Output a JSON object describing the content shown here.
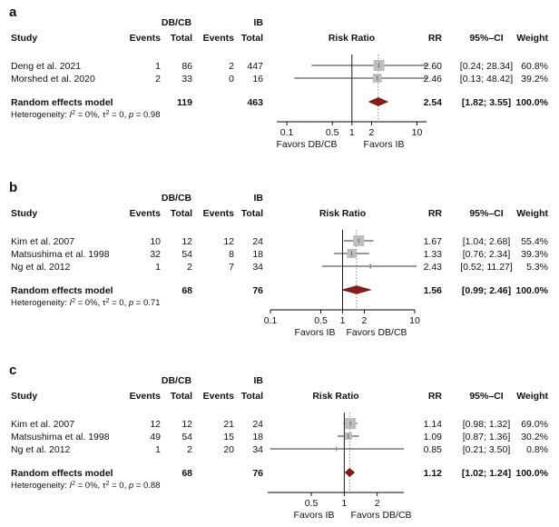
{
  "headers": {
    "study": "Study",
    "group1_top": "DB/CB",
    "group2_top": "IB",
    "events": "Events",
    "total": "Total",
    "risk_ratio": "Risk Ratio",
    "rr": "RR",
    "ci": "95%–CI",
    "weight": "Weight"
  },
  "chart_data": [
    {
      "type": "forest",
      "panel": "a",
      "axis": {
        "scale": "log",
        "ticks": [
          "0.1",
          "0.5",
          "1",
          "2",
          "10"
        ],
        "tick_values": [
          0.1,
          0.5,
          1,
          2,
          10
        ],
        "range": [
          0.07,
          14
        ]
      },
      "favors_left": "Favors DB/CB",
      "favors_right": "Favors IB",
      "studies": [
        {
          "study": "Deng et al. 2021",
          "e1": "1",
          "n1": "86",
          "e2": "2",
          "n2": "447",
          "rr": 2.6,
          "lo": 0.24,
          "hi": 28.34,
          "rr_text": "2.60",
          "ci_text": "[0.24; 28.34]",
          "weight_text": "60.8%",
          "weight": 60.8
        },
        {
          "study": "Morshed et al. 2020",
          "e1": "2",
          "n1": "33",
          "e2": "0",
          "n2": "16",
          "rr": 2.46,
          "lo": 0.13,
          "hi": 48.42,
          "rr_text": "2.46",
          "ci_text": "[0.13; 48.42]",
          "weight_text": "39.2%",
          "weight": 39.2
        }
      ],
      "pooled": {
        "label": "Random effects model",
        "n1": "119",
        "n2": "463",
        "rr": 2.54,
        "lo": 1.82,
        "hi": 3.55,
        "rr_text": "2.54",
        "ci_text": "[1.82; 3.55]",
        "weight_text": "100.0%"
      },
      "heterogeneity": {
        "prefix": "Heterogeneity: ",
        "i2": "I",
        "i2_rest": " = 0%, τ",
        "tau_rest": " = 0, ",
        "p": "p",
        "p_rest": " = 0.98"
      }
    },
    {
      "type": "forest",
      "panel": "b",
      "axis": {
        "scale": "log",
        "ticks": [
          "0.1",
          "0.5",
          "1",
          "2",
          "10"
        ],
        "tick_values": [
          0.1,
          0.5,
          1,
          2,
          10
        ],
        "range": [
          0.1,
          10
        ]
      },
      "favors_left": "Favors IB",
      "favors_right": "Favors DB/CB",
      "studies": [
        {
          "study": "Kim et al. 2007",
          "e1": "10",
          "n1": "12",
          "e2": "12",
          "n2": "24",
          "rr": 1.67,
          "lo": 1.04,
          "hi": 2.68,
          "rr_text": "1.67",
          "ci_text": "[1.04; 2.68]",
          "weight_text": "55.4%",
          "weight": 55.4
        },
        {
          "study": "Matsushima et al. 1998",
          "e1": "32",
          "n1": "54",
          "e2": "8",
          "n2": "18",
          "rr": 1.33,
          "lo": 0.76,
          "hi": 2.34,
          "rr_text": "1.33",
          "ci_text": "[0.76; 2.34]",
          "weight_text": "39.3%",
          "weight": 39.3
        },
        {
          "study": "Ng et al. 2012",
          "e1": "1",
          "n1": "2",
          "e2": "7",
          "n2": "34",
          "rr": 2.43,
          "lo": 0.52,
          "hi": 11.27,
          "rr_text": "2.43",
          "ci_text": "[0.52; 11.27]",
          "weight_text": "5.3%",
          "weight": 5.3
        }
      ],
      "pooled": {
        "label": "Random effects model",
        "n1": "68",
        "n2": "76",
        "rr": 1.56,
        "lo": 0.99,
        "hi": 2.46,
        "rr_text": "1.56",
        "ci_text": "[0.99; 2.46]",
        "weight_text": "100.0%"
      },
      "heterogeneity": {
        "prefix": "Heterogeneity: ",
        "i2": "I",
        "i2_rest": " = 0%, τ",
        "tau_rest": " = 0, ",
        "p": "p",
        "p_rest": " = 0.71"
      }
    },
    {
      "type": "forest",
      "panel": "c",
      "axis": {
        "scale": "log",
        "ticks": [
          "0.5",
          "1",
          "2"
        ],
        "tick_values": [
          0.5,
          1,
          2
        ],
        "range": [
          0.2,
          3.5
        ]
      },
      "favors_left": "Favors IB",
      "favors_right": "Favors DB/CB",
      "studies": [
        {
          "study": "Kim et al. 2007",
          "e1": "12",
          "n1": "12",
          "e2": "21",
          "n2": "24",
          "rr": 1.14,
          "lo": 0.98,
          "hi": 1.32,
          "rr_text": "1.14",
          "ci_text": "[0.98; 1.32]",
          "weight_text": "69.0%",
          "weight": 69.0
        },
        {
          "study": "Matsushima et al. 1998",
          "e1": "49",
          "n1": "54",
          "e2": "15",
          "n2": "18",
          "rr": 1.09,
          "lo": 0.87,
          "hi": 1.36,
          "rr_text": "1.09",
          "ci_text": "[0.87; 1.36]",
          "weight_text": "30.2%",
          "weight": 30.2
        },
        {
          "study": "Ng et al. 2012",
          "e1": "1",
          "n1": "2",
          "e2": "20",
          "n2": "34",
          "rr": 0.85,
          "lo": 0.21,
          "hi": 3.5,
          "rr_text": "0.85",
          "ci_text": "[0.21; 3.50]",
          "weight_text": "0.8%",
          "weight": 0.8
        }
      ],
      "pooled": {
        "label": "Random effects model",
        "n1": "68",
        "n2": "76",
        "rr": 1.12,
        "lo": 1.02,
        "hi": 1.24,
        "rr_text": "1.12",
        "ci_text": "[1.02; 1.24]",
        "weight_text": "100.0%"
      },
      "heterogeneity": {
        "prefix": "Heterogeneity: ",
        "i2": "I",
        "i2_rest": " = 0%, τ",
        "tau_rest": " = 0, ",
        "p": "p",
        "p_rest": " = 0.88"
      }
    }
  ],
  "colors": {
    "box": "#bdbdbd",
    "diamond": "#8b1a1a",
    "diamond_stroke": "#5a0d0d",
    "line": "#333333",
    "dotted": "#777777"
  }
}
